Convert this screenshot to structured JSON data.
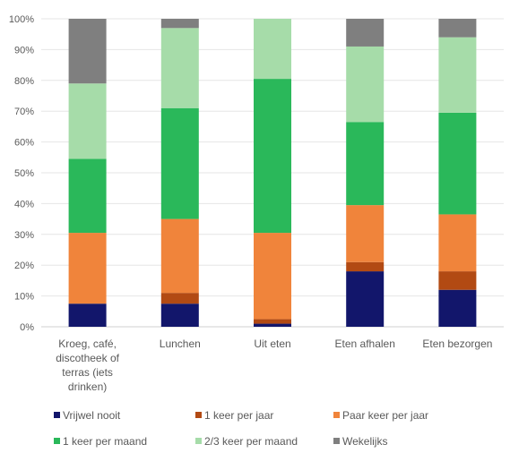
{
  "chart_data": {
    "type": "bar",
    "stacked": true,
    "categories": [
      [
        "Kroeg, café,",
        "discotheek of",
        "terras (iets",
        "drinken)"
      ],
      [
        "Lunchen"
      ],
      [
        "Uit eten"
      ],
      [
        "Eten afhalen"
      ],
      [
        "Eten bezorgen"
      ]
    ],
    "series": [
      {
        "name": "Vrijwel nooit",
        "color": "#12166b",
        "values": [
          7.5,
          7.5,
          1.0,
          18.0,
          12.0
        ]
      },
      {
        "name": "1 keer per jaar",
        "color": "#b24a13",
        "values": [
          0.0,
          3.5,
          1.5,
          3.0,
          6.0
        ]
      },
      {
        "name": "Paar keer per jaar",
        "color": "#f0843b",
        "values": [
          23.0,
          24.0,
          28.0,
          18.5,
          18.5
        ]
      },
      {
        "name": "1 keer per maand",
        "color": "#2ab85a",
        "values": [
          24.0,
          36.0,
          50.0,
          27.0,
          33.0
        ]
      },
      {
        "name": "2/3 keer per maand",
        "color": "#a6dca9",
        "values": [
          24.5,
          26.0,
          19.5,
          24.5,
          24.5
        ]
      },
      {
        "name": "Wekelijks",
        "color": "#7f7f7f",
        "values": [
          21.0,
          3.0,
          0.0,
          9.0,
          6.0
        ]
      }
    ],
    "ylim": [
      0,
      100
    ],
    "yticks": [
      "0%",
      "10%",
      "20%",
      "30%",
      "40%",
      "50%",
      "60%",
      "70%",
      "80%",
      "90%",
      "100%"
    ],
    "grid": true,
    "legend": "bottom"
  }
}
